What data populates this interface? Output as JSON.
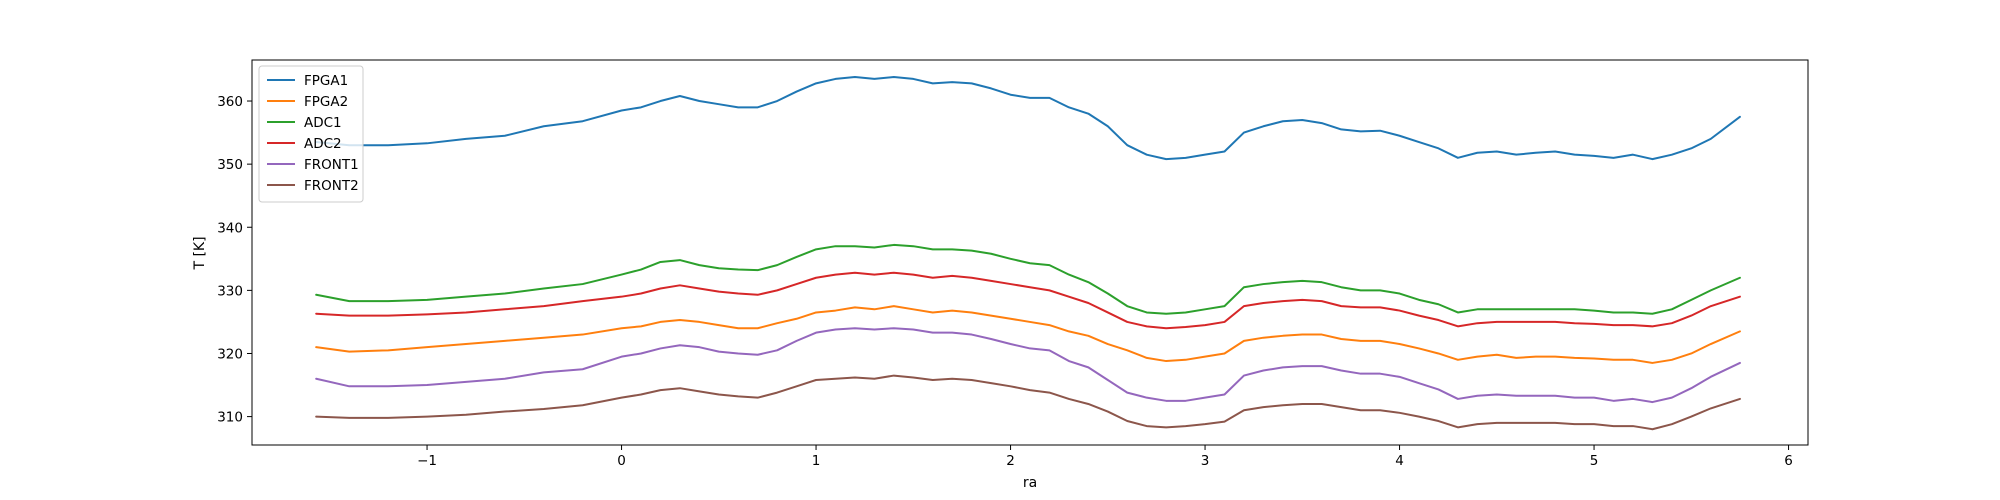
{
  "chart_data": {
    "type": "line",
    "title": "",
    "xlabel": "ra",
    "ylabel": "T [K]",
    "xlim": [
      -1.9,
      6.1
    ],
    "ylim": [
      305.5,
      366.5
    ],
    "xticks": [
      -1,
      0,
      1,
      2,
      3,
      4,
      5,
      6
    ],
    "xtick_labels": [
      "−1",
      "0",
      "1",
      "2",
      "3",
      "4",
      "5",
      "6"
    ],
    "yticks": [
      310,
      320,
      330,
      340,
      350,
      360
    ],
    "ytick_labels": [
      "310",
      "320",
      "330",
      "340",
      "350",
      "360"
    ],
    "grid": false,
    "legend": {
      "position": "top-left"
    },
    "x": [
      -1.57,
      -1.4,
      -1.2,
      -1.0,
      -0.8,
      -0.6,
      -0.4,
      -0.2,
      0.0,
      0.1,
      0.2,
      0.3,
      0.4,
      0.5,
      0.6,
      0.7,
      0.8,
      0.9,
      1.0,
      1.1,
      1.2,
      1.3,
      1.4,
      1.5,
      1.6,
      1.7,
      1.8,
      1.9,
      2.0,
      2.1,
      2.2,
      2.3,
      2.4,
      2.5,
      2.6,
      2.7,
      2.8,
      2.9,
      3.0,
      3.1,
      3.2,
      3.3,
      3.4,
      3.5,
      3.6,
      3.7,
      3.8,
      3.9,
      4.0,
      4.1,
      4.2,
      4.3,
      4.4,
      4.5,
      4.6,
      4.7,
      4.8,
      4.9,
      5.0,
      5.1,
      5.2,
      5.3,
      5.4,
      5.5,
      5.6,
      5.75
    ],
    "series": [
      {
        "name": "FPGA1",
        "color": "#1f77b4",
        "values": [
          353.5,
          353.0,
          353.0,
          353.3,
          354.0,
          354.5,
          356.0,
          356.8,
          358.5,
          359.0,
          360.0,
          360.8,
          360.0,
          359.5,
          359.0,
          359.0,
          360.0,
          361.5,
          362.8,
          363.5,
          363.8,
          363.5,
          363.8,
          363.5,
          362.8,
          363.0,
          362.8,
          362.0,
          361.0,
          360.5,
          360.5,
          359.0,
          358.0,
          356.0,
          353.0,
          351.5,
          350.8,
          351.0,
          351.5,
          352.0,
          355.0,
          356.0,
          356.8,
          357.0,
          356.5,
          355.5,
          355.2,
          355.3,
          354.5,
          353.5,
          352.5,
          351.0,
          351.8,
          352.0,
          351.5,
          351.8,
          352.0,
          351.5,
          351.3,
          351.0,
          351.5,
          350.8,
          351.5,
          352.5,
          354.0,
          357.5
        ]
      },
      {
        "name": "FPGA2",
        "color": "#ff7f0e",
        "values": [
          321.0,
          320.3,
          320.5,
          321.0,
          321.5,
          322.0,
          322.5,
          323.0,
          324.0,
          324.3,
          325.0,
          325.3,
          325.0,
          324.5,
          324.0,
          324.0,
          324.8,
          325.5,
          326.5,
          326.8,
          327.3,
          327.0,
          327.5,
          327.0,
          326.5,
          326.8,
          326.5,
          326.0,
          325.5,
          325.0,
          324.5,
          323.5,
          322.8,
          321.5,
          320.5,
          319.3,
          318.8,
          319.0,
          319.5,
          320.0,
          322.0,
          322.5,
          322.8,
          323.0,
          323.0,
          322.3,
          322.0,
          322.0,
          321.5,
          320.8,
          320.0,
          319.0,
          319.5,
          319.8,
          319.3,
          319.5,
          319.5,
          319.3,
          319.2,
          319.0,
          319.0,
          318.5,
          319.0,
          320.0,
          321.5,
          323.5
        ]
      },
      {
        "name": "ADC1",
        "color": "#2ca02c",
        "values": [
          329.3,
          328.3,
          328.3,
          328.5,
          329.0,
          329.5,
          330.3,
          331.0,
          332.5,
          333.3,
          334.5,
          334.8,
          334.0,
          333.5,
          333.3,
          333.2,
          334.0,
          335.3,
          336.5,
          337.0,
          337.0,
          336.8,
          337.2,
          337.0,
          336.5,
          336.5,
          336.3,
          335.8,
          335.0,
          334.3,
          334.0,
          332.5,
          331.3,
          329.5,
          327.5,
          326.5,
          326.3,
          326.5,
          327.0,
          327.5,
          330.5,
          331.0,
          331.3,
          331.5,
          331.3,
          330.5,
          330.0,
          330.0,
          329.5,
          328.5,
          327.8,
          326.5,
          327.0,
          327.0,
          327.0,
          327.0,
          327.0,
          327.0,
          326.8,
          326.5,
          326.5,
          326.3,
          327.0,
          328.5,
          330.0,
          332.0
        ]
      },
      {
        "name": "ADC2",
        "color": "#d62728",
        "values": [
          326.3,
          326.0,
          326.0,
          326.2,
          326.5,
          327.0,
          327.5,
          328.3,
          329.0,
          329.5,
          330.3,
          330.8,
          330.3,
          329.8,
          329.5,
          329.3,
          330.0,
          331.0,
          332.0,
          332.5,
          332.8,
          332.5,
          332.8,
          332.5,
          332.0,
          332.3,
          332.0,
          331.5,
          331.0,
          330.5,
          330.0,
          329.0,
          328.0,
          326.5,
          325.0,
          324.3,
          324.0,
          324.2,
          324.5,
          325.0,
          327.5,
          328.0,
          328.3,
          328.5,
          328.3,
          327.5,
          327.3,
          327.3,
          326.8,
          326.0,
          325.3,
          324.3,
          324.8,
          325.0,
          325.0,
          325.0,
          325.0,
          324.8,
          324.7,
          324.5,
          324.5,
          324.3,
          324.8,
          326.0,
          327.5,
          329.0
        ]
      },
      {
        "name": "FRONT1",
        "color": "#9467bd",
        "values": [
          316.0,
          314.8,
          314.8,
          315.0,
          315.5,
          316.0,
          317.0,
          317.5,
          319.5,
          320.0,
          320.8,
          321.3,
          321.0,
          320.3,
          320.0,
          319.8,
          320.5,
          322.0,
          323.3,
          323.8,
          324.0,
          323.8,
          324.0,
          323.8,
          323.3,
          323.3,
          323.0,
          322.3,
          321.5,
          320.8,
          320.5,
          318.8,
          317.8,
          315.8,
          313.8,
          313.0,
          312.5,
          312.5,
          313.0,
          313.5,
          316.5,
          317.3,
          317.8,
          318.0,
          318.0,
          317.3,
          316.8,
          316.8,
          316.3,
          315.3,
          314.3,
          312.8,
          313.3,
          313.5,
          313.3,
          313.3,
          313.3,
          313.0,
          313.0,
          312.5,
          312.8,
          312.3,
          313.0,
          314.5,
          316.3,
          318.5
        ]
      },
      {
        "name": "FRONT2",
        "color": "#8c564b",
        "values": [
          310.0,
          309.8,
          309.8,
          310.0,
          310.3,
          310.8,
          311.2,
          311.8,
          313.0,
          313.5,
          314.2,
          314.5,
          314.0,
          313.5,
          313.2,
          313.0,
          313.8,
          314.8,
          315.8,
          316.0,
          316.2,
          316.0,
          316.5,
          316.2,
          315.8,
          316.0,
          315.8,
          315.3,
          314.8,
          314.2,
          313.8,
          312.8,
          312.0,
          310.8,
          309.3,
          308.5,
          308.3,
          308.5,
          308.8,
          309.2,
          311.0,
          311.5,
          311.8,
          312.0,
          312.0,
          311.5,
          311.0,
          311.0,
          310.6,
          310.0,
          309.3,
          308.3,
          308.8,
          309.0,
          309.0,
          309.0,
          309.0,
          308.8,
          308.8,
          308.5,
          308.5,
          308.0,
          308.8,
          310.0,
          311.3,
          312.8
        ]
      }
    ]
  }
}
